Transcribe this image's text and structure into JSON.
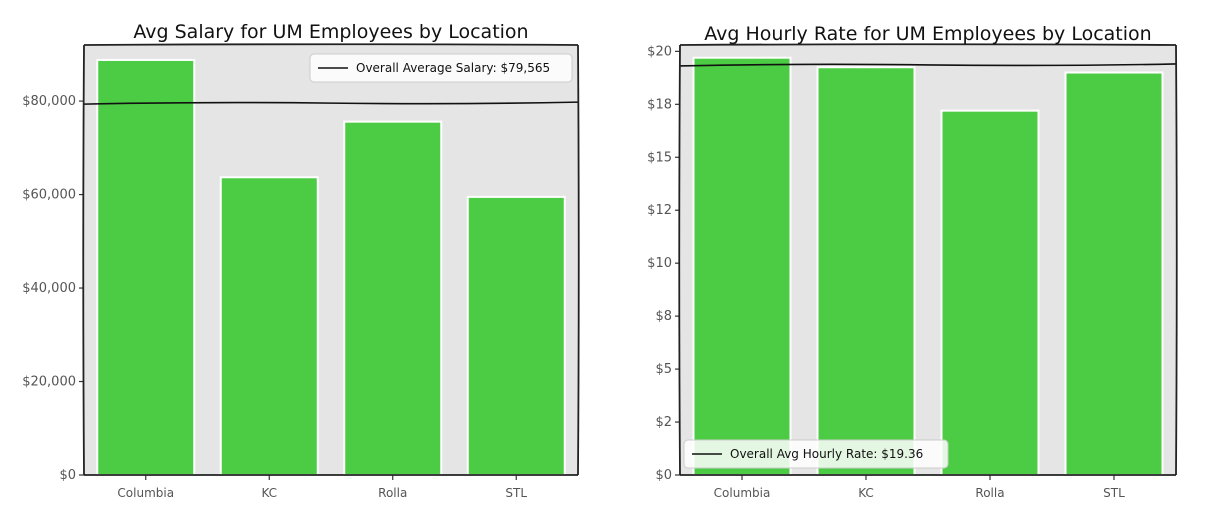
{
  "chart_data": [
    {
      "type": "bar",
      "title": "Avg Salary for UM Employees by Location",
      "categories": [
        "Columbia",
        "KC",
        "Rolla",
        "STL"
      ],
      "values": [
        88800,
        63700,
        75600,
        59500
      ],
      "ylim": [
        0,
        92000
      ],
      "y_ticks": [
        0,
        20000,
        40000,
        60000,
        80000
      ],
      "y_tick_labels": [
        "$0",
        "$20,000",
        "$40,000",
        "$60,000",
        "$80,000"
      ],
      "reference_line": {
        "value": 79565,
        "label": "Overall Average Salary: $79,565"
      },
      "legend_position": "top-right",
      "bar_color": "#4CCB45",
      "background_color": "#E5E5E5",
      "grid": false
    },
    {
      "type": "bar",
      "title": "Avg Hourly Rate for UM Employees by Location",
      "categories": [
        "Columbia",
        "KC",
        "Rolla",
        "STL"
      ],
      "values": [
        19.7,
        19.25,
        17.2,
        19.0
      ],
      "ylim": [
        0,
        20.3
      ],
      "y_ticks": [
        0,
        2,
        4,
        6,
        8,
        10,
        12,
        14,
        16,
        18,
        20
      ],
      "y_tick_labels": [
        "$0",
        "$2",
        "$5",
        "$8",
        "$10",
        "$12",
        "$15",
        "$18",
        "$20"
      ],
      "y_tick_label_values": [
        0,
        2.5,
        5,
        7.5,
        10,
        12.5,
        15,
        17.5,
        20
      ],
      "reference_line": {
        "value": 19.36,
        "label": "Overall Avg Hourly Rate: $19.36"
      },
      "legend_position": "bottom-left",
      "bar_color": "#4CCB45",
      "background_color": "#E5E5E5",
      "grid": false
    }
  ]
}
